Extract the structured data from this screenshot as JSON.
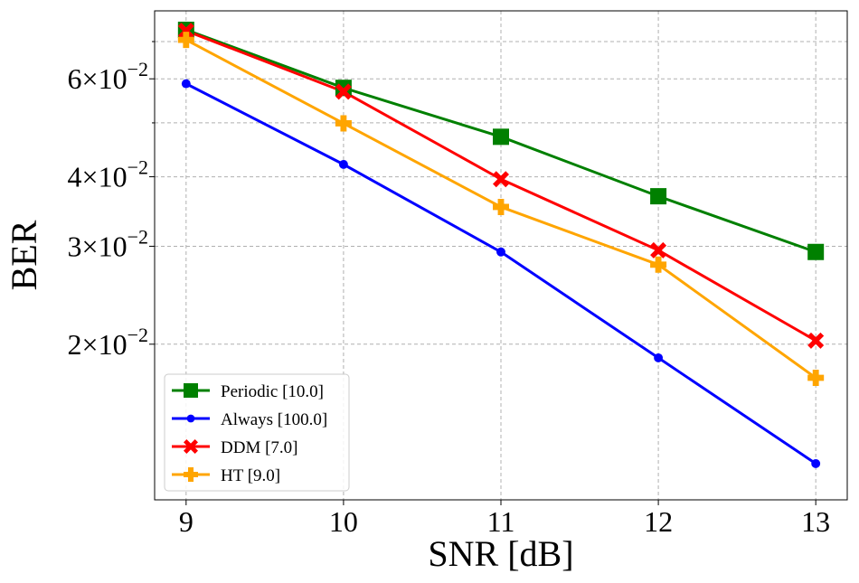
{
  "chart_data": {
    "type": "line",
    "xlabel": "SNR [dB]",
    "ylabel": "BER",
    "y_scale": "log",
    "xlim": [
      8.8,
      13.2
    ],
    "ylim": [
      0.0105,
      0.0795
    ],
    "x_ticks": [
      9,
      10,
      11,
      12,
      13
    ],
    "x_tick_labels": [
      "9",
      "10",
      "11",
      "12",
      "13"
    ],
    "y_major_ticks": [
      {
        "value": 0.02,
        "mantissa": "2",
        "exponent": "−2"
      },
      {
        "value": 0.03,
        "mantissa": "3",
        "exponent": "−2"
      },
      {
        "value": 0.04,
        "mantissa": "4",
        "exponent": "−2"
      },
      {
        "value": 0.06,
        "mantissa": "6",
        "exponent": "−2"
      }
    ],
    "y_tick_times": "×",
    "y_tick_base": "10",
    "y_minor_gridlines": [
      0.05,
      0.07
    ],
    "grid": true,
    "legend_position": "lower-left",
    "x": [
      9,
      10,
      11,
      12,
      13
    ],
    "series": [
      {
        "name": "Periodic [10.0]",
        "color": "#008000",
        "marker": "square",
        "values": [
          0.0735,
          0.0578,
          0.0472,
          0.0369,
          0.0293
        ]
      },
      {
        "name": "Always [100.0]",
        "color": "#0000ff",
        "marker": "circle",
        "values": [
          0.0588,
          0.0421,
          0.0293,
          0.0189,
          0.0122
        ]
      },
      {
        "name": "DDM [7.0]",
        "color": "#ff0000",
        "marker": "x",
        "values": [
          0.0732,
          0.0569,
          0.0396,
          0.0295,
          0.0203
        ]
      },
      {
        "name": "HT [9.0]",
        "color": "#ffa500",
        "marker": "plus",
        "values": [
          0.0705,
          0.0499,
          0.0353,
          0.0278,
          0.0174
        ]
      }
    ]
  }
}
